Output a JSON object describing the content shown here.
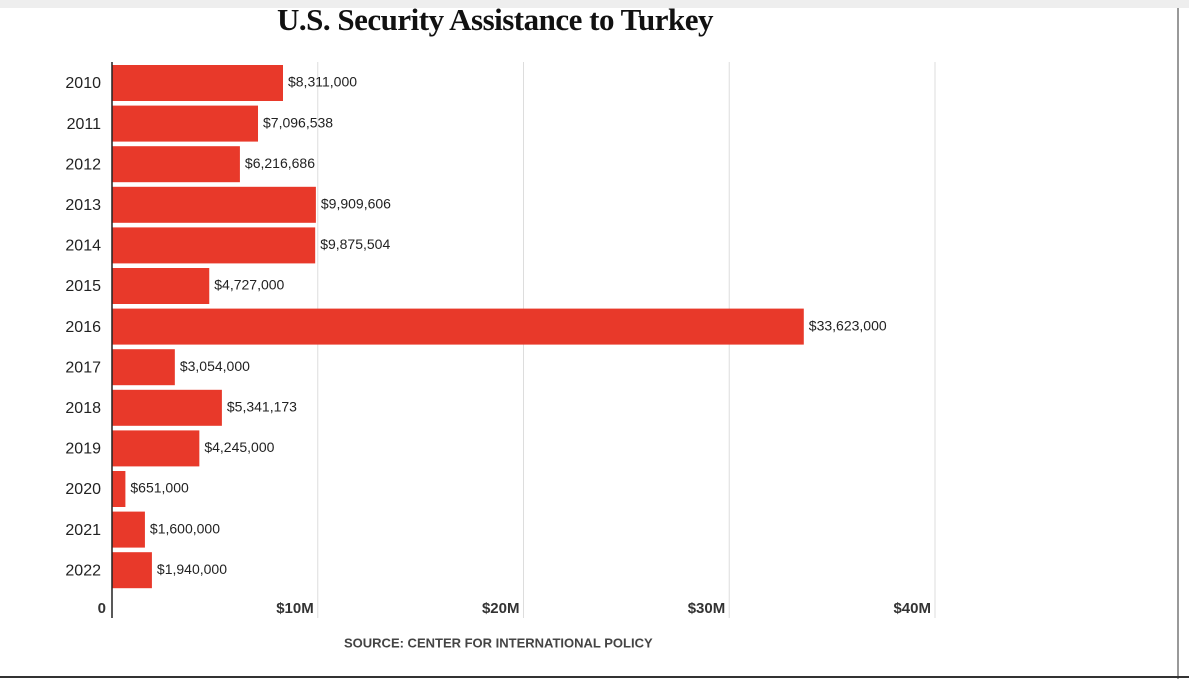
{
  "chart_data": {
    "type": "bar",
    "orientation": "horizontal",
    "title": "U.S. Security Assistance to Turkey",
    "source": "SOURCE: CENTER FOR INTERNATIONAL POLICY",
    "categories": [
      "2010",
      "2011",
      "2012",
      "2013",
      "2014",
      "2015",
      "2016",
      "2017",
      "2018",
      "2019",
      "2020",
      "2021",
      "2022"
    ],
    "values": [
      8311000,
      7096538,
      6216686,
      9909606,
      9875504,
      4727000,
      33623000,
      3054000,
      5341173,
      4245000,
      651000,
      1600000,
      1940000
    ],
    "value_labels": [
      "$8,311,000",
      "$7,096,538",
      "$6,216,686",
      "$9,909,606",
      "$9,875,504",
      "$4,727,000",
      "$33,623,000",
      "$3,054,000",
      "$5,341,173",
      "$4,245,000",
      "$651,000",
      "$1,600,000",
      "$1,940,000"
    ],
    "color": "#e8392a",
    "xlim": [
      0,
      40000000
    ],
    "xticks": [
      0,
      {
        "value": 10000000,
        "label": "$10M"
      },
      {
        "value": 20000000,
        "label": "$20M"
      },
      {
        "value": 30000000,
        "label": "$30M"
      },
      {
        "value": 40000000,
        "label": "$40M"
      }
    ],
    "grid": true
  }
}
